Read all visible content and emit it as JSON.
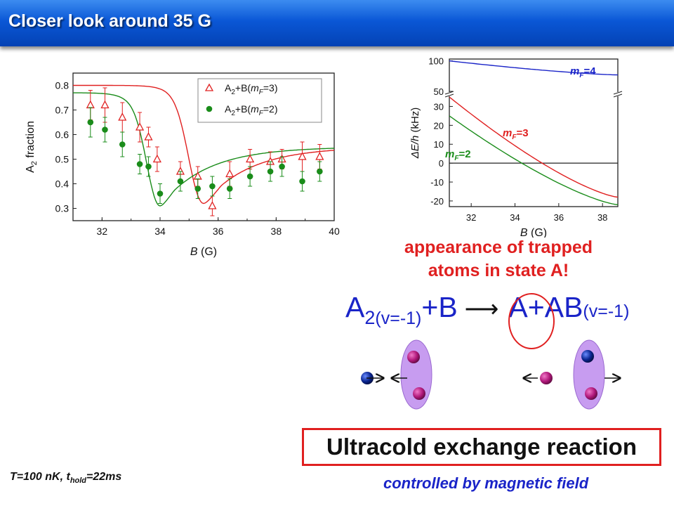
{
  "slide": {
    "title": "Closer look around 35 G",
    "caption_line1": "appearance of trapped",
    "caption_line2": "atoms in state A!",
    "box_text": "Ultracold exchange reaction",
    "subcaption": "controlled by magnetic field",
    "conditions": {
      "T": "T=100 nK, t",
      "sub": "hold",
      "tail": "=22ms"
    },
    "equation": {
      "A": "A",
      "two": "2",
      "vib1": "(v=-1)",
      "plusB": "+B",
      "arrow": "⟶",
      "Aprod": "A",
      "plusAB": "+AB",
      "vib2": "(v=-1)"
    },
    "colors": {
      "title_bar": "#0a57d6",
      "red": "#e02020",
      "blue": "#1a24c8",
      "green": "#1a8c1a",
      "molecule_fill": "#c79cf0",
      "atom_magenta": "#b0187a",
      "atom_blue": "#0a2590"
    }
  },
  "chart_data": [
    {
      "type": "scatter",
      "xlabel": "B (G)",
      "ylabel": "A2 fraction",
      "xlim": [
        31,
        40
      ],
      "ylim": [
        0.25,
        0.85
      ],
      "xticks": [
        32,
        34,
        36,
        38,
        40
      ],
      "yticks": [
        0.3,
        0.4,
        0.5,
        0.6,
        0.7,
        0.8
      ],
      "legend": [
        "A2+B(mF=3)",
        "A2+B(mF=2)"
      ],
      "series": [
        {
          "name": "A2+B(mF=3)",
          "marker": "triangle-open",
          "color": "#e02020",
          "x": [
            31.6,
            32.1,
            32.7,
            33.3,
            33.6,
            33.9,
            34.7,
            35.3,
            35.8,
            36.4,
            37.1,
            37.8,
            38.2,
            38.9,
            39.5
          ],
          "y": [
            0.72,
            0.72,
            0.67,
            0.63,
            0.59,
            0.5,
            0.45,
            0.43,
            0.31,
            0.44,
            0.5,
            0.49,
            0.5,
            0.51,
            0.51
          ],
          "err": [
            0.06,
            0.07,
            0.06,
            0.06,
            0.04,
            0.05,
            0.04,
            0.04,
            0.04,
            0.05,
            0.04,
            0.04,
            0.04,
            0.06,
            0.05
          ]
        },
        {
          "name": "A2+B(mF=2)",
          "marker": "circle-filled",
          "color": "#1a8c1a",
          "x": [
            31.6,
            32.1,
            32.7,
            33.3,
            33.6,
            34.0,
            34.7,
            35.3,
            35.8,
            36.4,
            37.1,
            37.8,
            38.2,
            38.9,
            39.5
          ],
          "y": [
            0.65,
            0.62,
            0.56,
            0.48,
            0.47,
            0.36,
            0.41,
            0.38,
            0.39,
            0.38,
            0.43,
            0.45,
            0.47,
            0.41,
            0.45
          ],
          "err": [
            0.06,
            0.05,
            0.05,
            0.04,
            0.04,
            0.04,
            0.04,
            0.04,
            0.04,
            0.04,
            0.04,
            0.04,
            0.04,
            0.04,
            0.04
          ]
        }
      ],
      "fits": [
        {
          "name": "fit mF=3",
          "color": "#e02020",
          "min_x": 35.5,
          "min_y": 0.32,
          "baseline_left": 0.8,
          "baseline_right": 0.55
        },
        {
          "name": "fit mF=2",
          "color": "#1a8c1a",
          "min_x": 34.0,
          "min_y": 0.31,
          "baseline_left": 0.77,
          "baseline_right": 0.55
        }
      ]
    },
    {
      "type": "line",
      "xlabel": "B (G)",
      "ylabel": "ΔE/h (kHz)",
      "xlim": [
        31,
        38.7
      ],
      "xticks": [
        32,
        34,
        36,
        38
      ],
      "yticks_lower": [
        -20,
        -10,
        0,
        10,
        20,
        30
      ],
      "yticks_upper": [
        50,
        100
      ],
      "axis_break": true,
      "series": [
        {
          "name": "mF=4",
          "color": "#1a24c8",
          "x": [
            31,
            38.7
          ],
          "y": [
            100,
            77
          ]
        },
        {
          "name": "mF=3",
          "color": "#e02020",
          "x": [
            31,
            38.7
          ],
          "y": [
            35,
            -18
          ]
        },
        {
          "name": "mF=2",
          "color": "#1a8c1a",
          "x": [
            31,
            38.7
          ],
          "y": [
            25,
            -22
          ]
        }
      ],
      "zero_line": true
    }
  ]
}
